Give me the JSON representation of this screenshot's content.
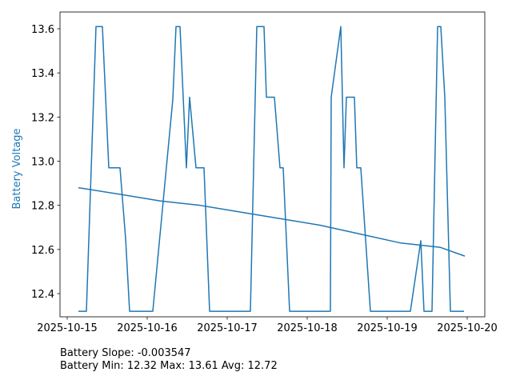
{
  "chart_data": {
    "type": "line",
    "ylabel": "Battery Voltage",
    "ylabel_color": "#1f77b4",
    "annotations": [
      "Battery Slope: -0.003547",
      "Battery Min: 12.32 Max: 13.61 Avg: 12.72"
    ],
    "xlim": [
      20375.91,
      20381.22
    ],
    "ylim": [
      12.295,
      13.676
    ],
    "xticks": [
      {
        "value": 20376,
        "label": "2025-10-15"
      },
      {
        "value": 20377,
        "label": "2025-10-16"
      },
      {
        "value": 20378,
        "label": "2025-10-17"
      },
      {
        "value": 20379,
        "label": "2025-10-18"
      },
      {
        "value": 20380,
        "label": "2025-10-19"
      },
      {
        "value": 20381,
        "label": "2025-10-20"
      }
    ],
    "yticks": [
      12.4,
      12.6,
      12.8,
      {
        "value": 13,
        "label": "13.0"
      },
      13.2,
      13.4,
      13.6
    ],
    "series": [
      {
        "color": "#1f77b4",
        "x": [
          20376.14,
          20376.24,
          20376.36,
          20376.44,
          20376.52,
          20376.66,
          20376.73,
          20376.78,
          20377.07,
          20377.32,
          20377.36,
          20377.41,
          20377.49,
          20377.53,
          20377.61,
          20377.71,
          20377.78,
          20378.29,
          20378.37,
          20378.46,
          20378.49,
          20378.59,
          20378.66,
          20378.7,
          20378.78,
          20379.29,
          20379.3,
          20379.42,
          20379.46,
          20379.49,
          20379.59,
          20379.62,
          20379.67,
          20379.79,
          20380.29,
          20380.42,
          20380.46,
          20380.56,
          20380.63,
          20380.67,
          20380.72,
          20380.79,
          20380.96
        ],
        "values": [
          12.32,
          12.32,
          13.61,
          13.61,
          12.97,
          12.97,
          12.65,
          12.32,
          12.32,
          13.28,
          13.61,
          13.61,
          12.97,
          13.29,
          12.97,
          12.97,
          12.32,
          12.32,
          13.61,
          13.61,
          13.29,
          13.29,
          12.97,
          12.97,
          12.32,
          12.32,
          13.29,
          13.61,
          12.97,
          13.29,
          13.29,
          12.97,
          12.97,
          12.32,
          12.32,
          12.64,
          12.32,
          12.32,
          13.61,
          13.61,
          13.29,
          12.32,
          12.32
        ]
      },
      {
        "color": "#1f77b4",
        "x": [
          20376.14,
          20376.66,
          20377.16,
          20377.66,
          20378.16,
          20378.66,
          20379.16,
          20379.66,
          20380.16,
          20380.66,
          20380.97
        ],
        "values": [
          12.88,
          12.85,
          12.82,
          12.8,
          12.77,
          12.74,
          12.71,
          12.67,
          12.63,
          12.61,
          12.57
        ]
      }
    ]
  }
}
